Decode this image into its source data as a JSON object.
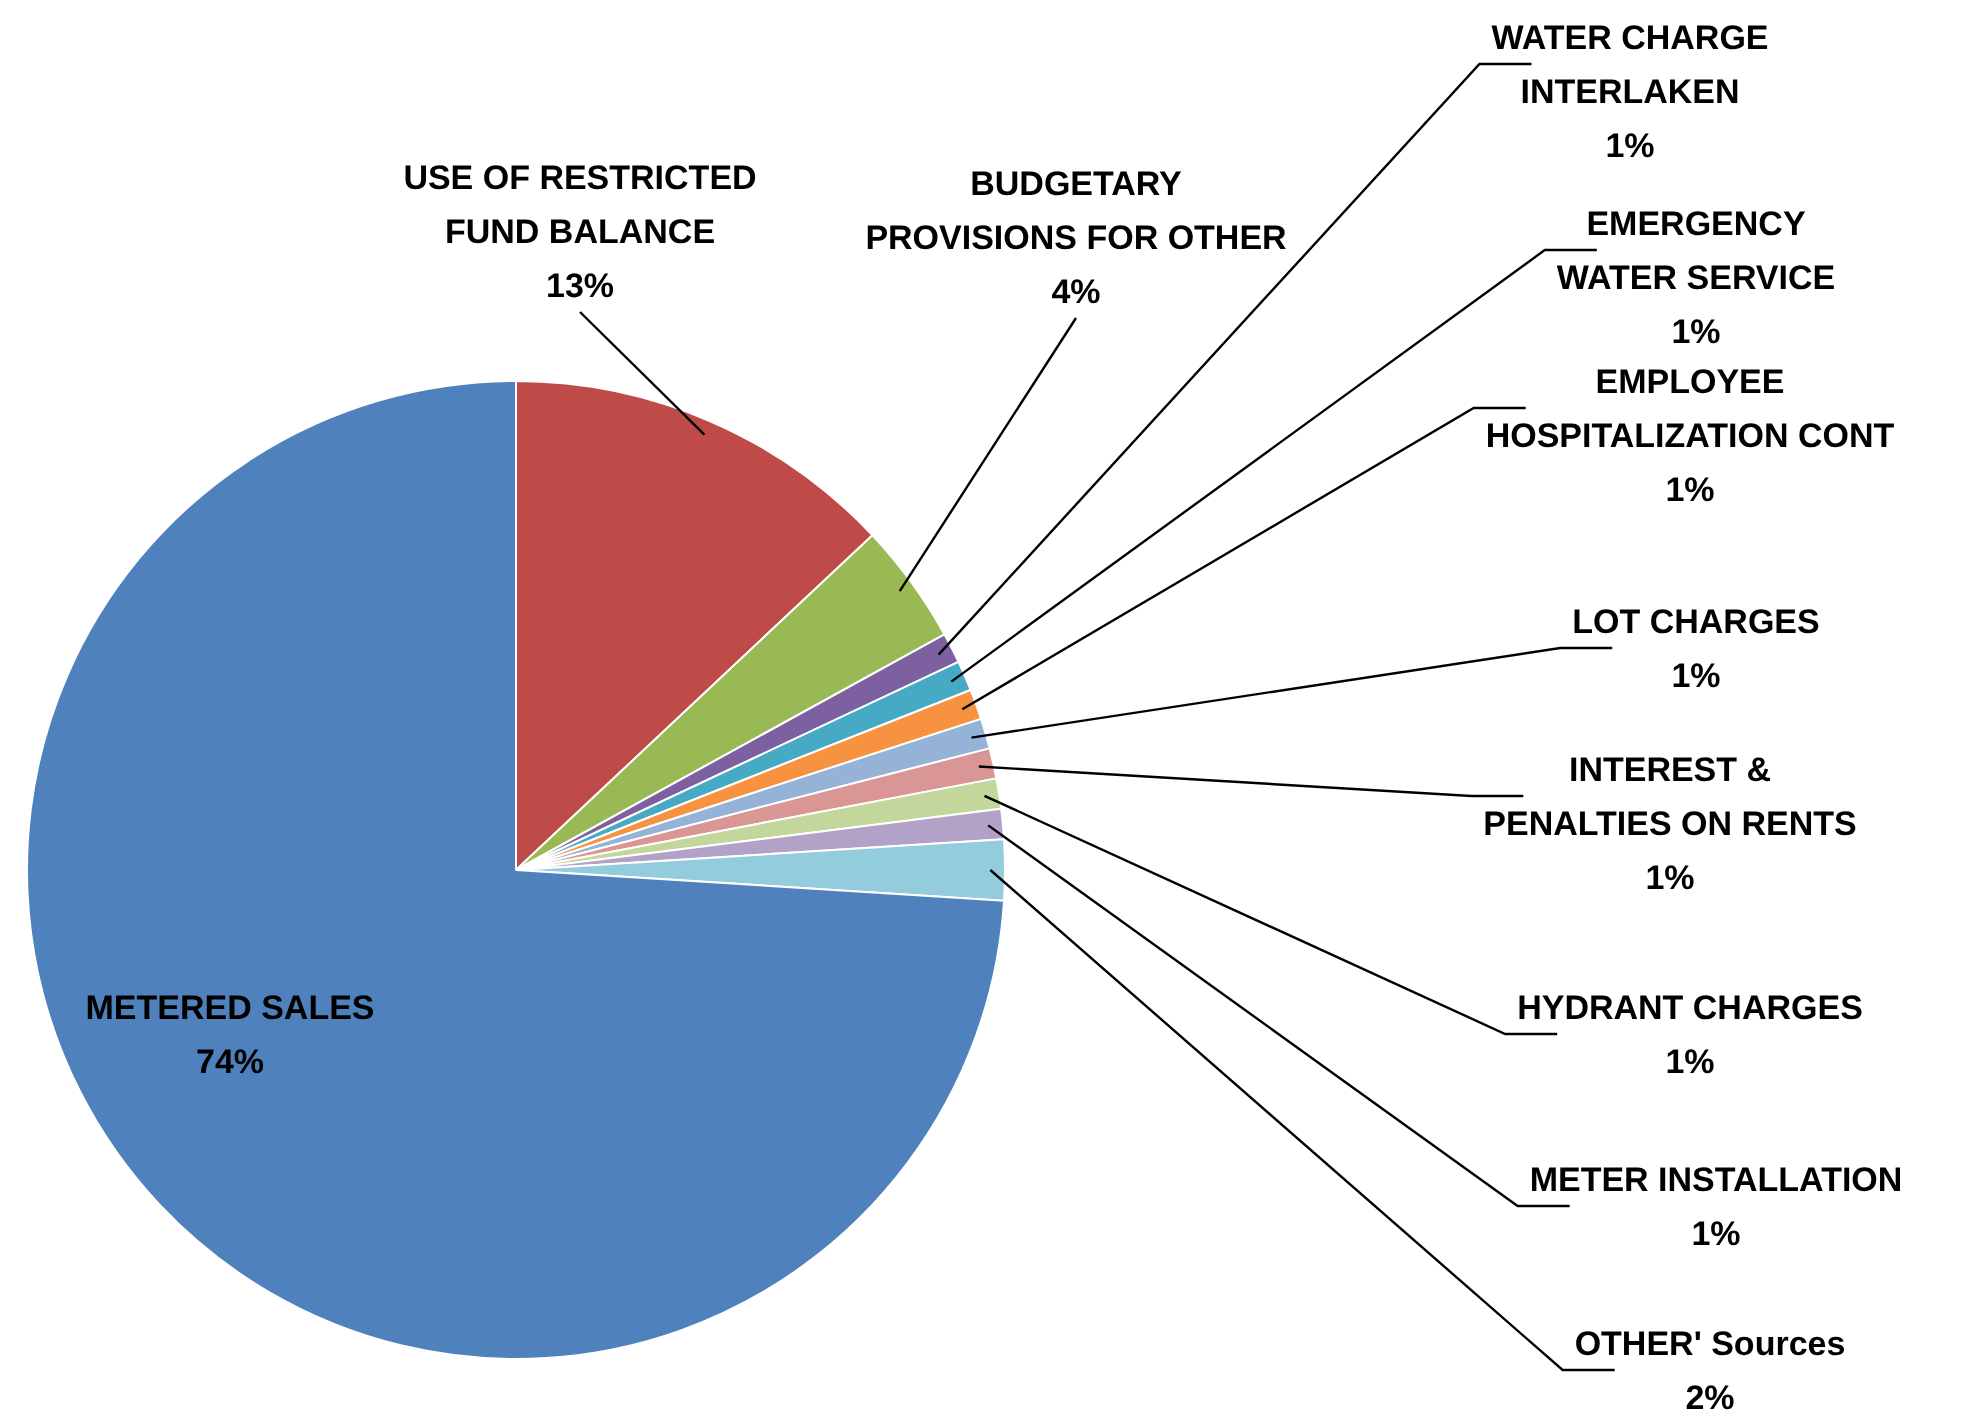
{
  "chart_data": {
    "type": "pie",
    "categories": [
      "USE OF RESTRICTED FUND BALANCE",
      "BUDGETARY PROVISIONS FOR OTHER",
      "WATER CHARGE INTERLAKEN",
      "EMERGENCY WATER SERVICE",
      "EMPLOYEE HOSPITALIZATION CONT",
      "LOT CHARGES",
      "INTEREST & PENALTIES ON RENTS",
      "HYDRANT CHARGES",
      "METER INSTALLATION",
      "OTHER' Sources",
      "METERED SALES"
    ],
    "values": [
      13,
      4,
      1,
      1,
      1,
      1,
      1,
      1,
      1,
      2,
      74
    ],
    "value_labels": [
      "13%",
      "4%",
      "1%",
      "1%",
      "1%",
      "1%",
      "1%",
      "1%",
      "1%",
      "2%",
      "74%"
    ],
    "colors": [
      "#be4b48",
      "#98b954",
      "#7d60a0",
      "#46aac5",
      "#f69240",
      "#95b3d7",
      "#d99694",
      "#c3d69b",
      "#b3a2c7",
      "#93cddd",
      "#4f81bd"
    ],
    "legend": false
  }
}
